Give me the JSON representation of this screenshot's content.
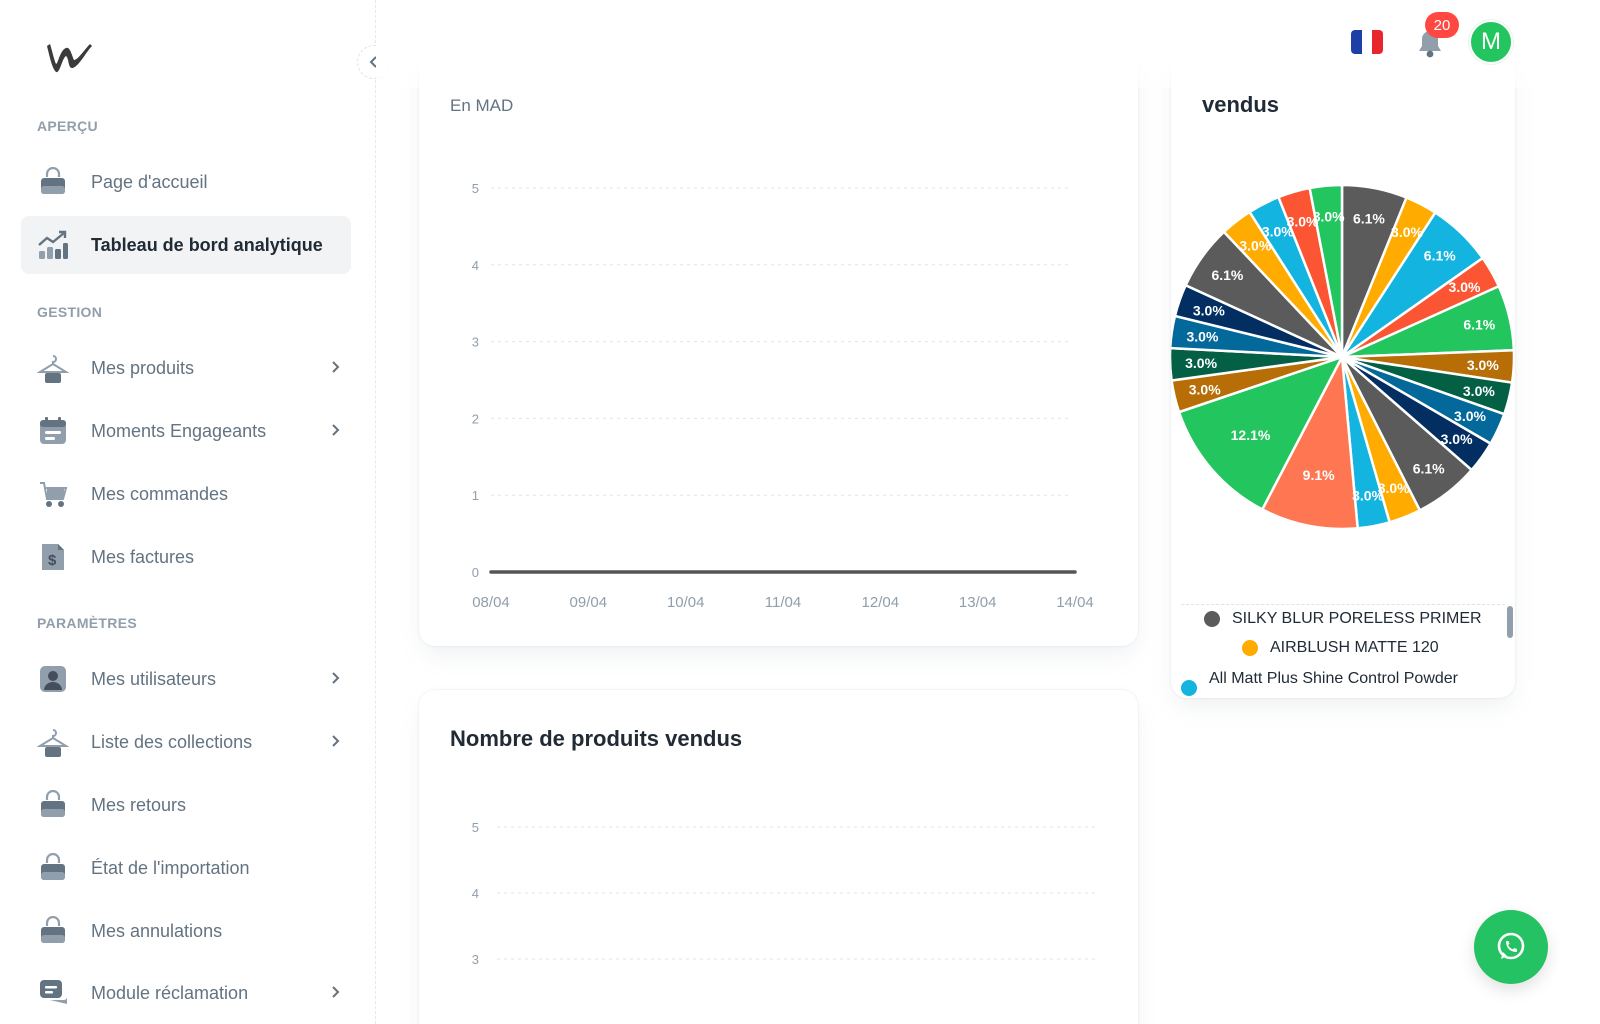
{
  "sidebar": {
    "sections": {
      "apercu": "APERÇU",
      "gestion": "GESTION",
      "parametres": "PARAMÈTRES"
    },
    "items": [
      {
        "label": "Page d'accueil",
        "icon": "bag-icon"
      },
      {
        "label": "Tableau de bord analytique",
        "icon": "analytics-icon",
        "active": true
      },
      {
        "label": "Mes produits",
        "icon": "hanger-icon",
        "chevron": true
      },
      {
        "label": "Moments Engageants",
        "icon": "calendar-icon",
        "chevron": true
      },
      {
        "label": "Mes commandes",
        "icon": "cart-icon"
      },
      {
        "label": "Mes factures",
        "icon": "invoice-icon"
      },
      {
        "label": "Mes utilisateurs",
        "icon": "user-icon",
        "chevron": true
      },
      {
        "label": "Liste des collections",
        "icon": "hanger-icon",
        "chevron": true
      },
      {
        "label": "Mes retours",
        "icon": "bag-icon"
      },
      {
        "label": "État de l'importation",
        "icon": "bag-icon"
      },
      {
        "label": "Mes annulations",
        "icon": "bag-icon"
      },
      {
        "label": "Module réclamation",
        "icon": "chat-icon",
        "chevron": true
      }
    ]
  },
  "header": {
    "notification_count": "20",
    "avatar_initial": "M",
    "language_flag": "fr-flag-icon"
  },
  "revenue_card": {
    "subtitle": "En MAD"
  },
  "products_sold_card": {
    "title": "Nombre de produits vendus"
  },
  "pie_card": {
    "title": "vendus",
    "legend": [
      {
        "label": "SILKY BLUR PORELESS PRIMER",
        "color": "#5b5b5b"
      },
      {
        "label": "AIRBLUSH MATTE 120",
        "color": "#ffab00"
      },
      {
        "label": "All Matt Plus Shine Control Powder",
        "color": "#13b4e0"
      }
    ]
  },
  "chart_data": [
    {
      "type": "line",
      "x": [
        "08/04",
        "09/04",
        "10/04",
        "11/04",
        "12/04",
        "13/04",
        "14/04"
      ],
      "series": [
        {
          "values": [
            0,
            0,
            0,
            0,
            0,
            0,
            0
          ]
        }
      ],
      "yticks": [
        "0",
        "1",
        "2",
        "3",
        "4",
        "5"
      ],
      "ylim": [
        0,
        5
      ],
      "grid": true,
      "color": "#555555"
    },
    {
      "type": "line",
      "yticks": [
        "3",
        "4",
        "5"
      ],
      "ylim": [
        0,
        5
      ],
      "grid": true
    },
    {
      "type": "pie",
      "slices": [
        {
          "value": 6.1,
          "label": "6.1%",
          "color": "#5b5b5b"
        },
        {
          "value": 3.0,
          "label": "3.0%",
          "color": "#ffab00"
        },
        {
          "value": 6.1,
          "label": "6.1%",
          "color": "#13b4e0"
        },
        {
          "value": 3.0,
          "label": "3.0%",
          "color": "#fb5533"
        },
        {
          "value": 6.1,
          "label": "6.1%",
          "color": "#22c55e"
        },
        {
          "value": 3.0,
          "label": "3.0%",
          "color": "#b76e07"
        },
        {
          "value": 3.0,
          "label": "3.0%",
          "color": "#046044"
        },
        {
          "value": 3.0,
          "label": "3.0%",
          "color": "#03699b"
        },
        {
          "value": 3.0,
          "label": "3.0%",
          "color": "#022e62"
        },
        {
          "value": 6.1,
          "label": "6.1%",
          "color": "#5b5b5b"
        },
        {
          "value": 3.0,
          "label": "3.0%",
          "color": "#ffab00"
        },
        {
          "value": 3.0,
          "label": "3.0%",
          "color": "#13b4e0"
        },
        {
          "value": 9.1,
          "label": "9.1%",
          "color": "#ff7752"
        },
        {
          "value": 12.1,
          "label": "12.1%",
          "color": "#22c55e"
        },
        {
          "value": 3.0,
          "label": "3.0%",
          "color": "#b76e07"
        },
        {
          "value": 3.0,
          "label": "3.0%",
          "color": "#046044"
        },
        {
          "value": 3.0,
          "label": "3.0%",
          "color": "#03699b"
        },
        {
          "value": 3.0,
          "label": "3.0%",
          "color": "#022e62"
        },
        {
          "value": 6.1,
          "label": "6.1%",
          "color": "#5b5b5b"
        },
        {
          "value": 3.0,
          "label": "3.0%",
          "color": "#ffab00"
        },
        {
          "value": 3.0,
          "label": "3.0%",
          "color": "#13b4e0"
        },
        {
          "value": 3.0,
          "label": "3.0%",
          "color": "#fb5533"
        },
        {
          "value": 3.0,
          "label": "3.0%",
          "color": "#22c55e"
        }
      ]
    }
  ]
}
